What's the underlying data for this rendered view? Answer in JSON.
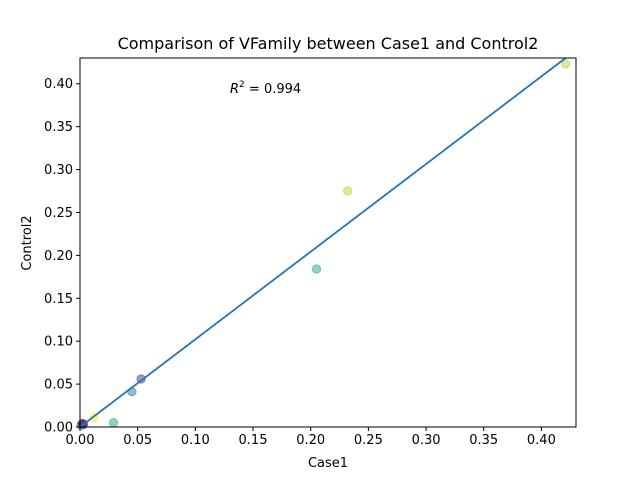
{
  "chart_data": {
    "type": "scatter",
    "title": "Comparison of VFamily between Case1 and Control2",
    "xlabel": "Case1",
    "ylabel": "Control2",
    "xlim": [
      0,
      0.43
    ],
    "ylim": [
      0,
      0.43
    ],
    "xticks": [
      0.0,
      0.05,
      0.1,
      0.15,
      0.2,
      0.25,
      0.3,
      0.35,
      0.4
    ],
    "yticks": [
      0.0,
      0.05,
      0.1,
      0.15,
      0.2,
      0.25,
      0.3,
      0.35,
      0.4
    ],
    "xtick_labels": [
      "0.00",
      "0.05",
      "0.10",
      "0.15",
      "0.20",
      "0.25",
      "0.30",
      "0.35",
      "0.40"
    ],
    "ytick_labels": [
      "0.00",
      "0.05",
      "0.10",
      "0.15",
      "0.20",
      "0.25",
      "0.30",
      "0.35",
      "0.40"
    ],
    "grid": false,
    "annotation": {
      "prefix": "R",
      "superscript": "2",
      "text": " = 0.994"
    },
    "points": [
      {
        "x": 0.421,
        "y": 0.423,
        "color": "#a5db36"
      },
      {
        "x": 0.232,
        "y": 0.275,
        "color": "#a5db36"
      },
      {
        "x": 0.205,
        "y": 0.184,
        "color": "#22a884"
      },
      {
        "x": 0.053,
        "y": 0.056,
        "color": "#46337e"
      },
      {
        "x": 0.045,
        "y": 0.041,
        "color": "#2a788e"
      },
      {
        "x": 0.029,
        "y": 0.005,
        "color": "#22a884"
      },
      {
        "x": 0.012,
        "y": 0.011,
        "color": "#fde725"
      },
      {
        "x": 0.003,
        "y": 0.003,
        "color": "#440154"
      },
      {
        "x": 0.001,
        "y": 0.002,
        "color": "#31688e"
      },
      {
        "x": 0.002,
        "y": 0.004,
        "color": "#440154"
      }
    ],
    "fit_line": {
      "x": [
        0.0,
        0.421
      ],
      "y": [
        0.0,
        0.43
      ],
      "color": "#1f77b4"
    }
  }
}
